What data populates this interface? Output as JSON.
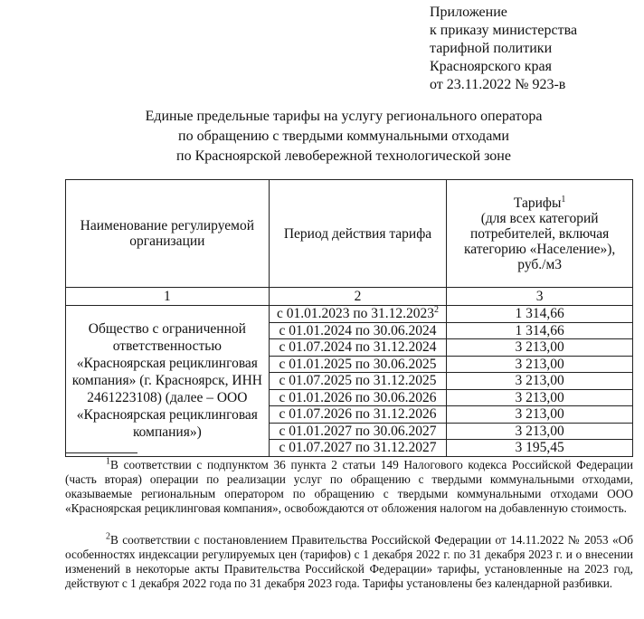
{
  "appendix": {
    "lines": [
      "Приложение",
      "к приказу министерства",
      "тарифной политики",
      "Красноярского края",
      "от 23.11.2022 № 923-в"
    ]
  },
  "title": {
    "lines": [
      "Единые предельные тарифы на услугу регионального оператора",
      "по обращению с твердыми коммунальными отходами",
      "по Красноярской левобережной технологической зоне"
    ]
  },
  "table": {
    "headers": {
      "col1": "Наименование регулируемой организации",
      "col2": "Период действия тарифа",
      "col3_title": "Тарифы",
      "col3_sup": "1",
      "col3_rest": "(для всех категорий потребителей, включая категорию «Население»), руб./м3"
    },
    "col_numbers": [
      "1",
      "2",
      "3"
    ],
    "organization": "Общество с ограниченной ответственностью «Красноярская рециклинговая компания» (г. Красноярск, ИНН 2461223108) (далее – ООО «Красноярская рециклинговая компания»)",
    "rows": [
      {
        "period": "с 01.01.2023 по 31.12.2023",
        "sup": "2",
        "tariff": "1 314,66"
      },
      {
        "period": "с 01.01.2024 по 30.06.2024",
        "sup": "",
        "tariff": "1 314,66"
      },
      {
        "period": "с 01.07.2024 по 31.12.2024",
        "sup": "",
        "tariff": "3 213,00"
      },
      {
        "period": "с 01.01.2025 по 30.06.2025",
        "sup": "",
        "tariff": "3 213,00"
      },
      {
        "period": "с 01.07.2025 по 31.12.2025",
        "sup": "",
        "tariff": "3 213,00"
      },
      {
        "period": "с 01.01.2026 по 30.06.2026",
        "sup": "",
        "tariff": "3 213,00"
      },
      {
        "period": "с 01.07.2026 по 31.12.2026",
        "sup": "",
        "tariff": "3 213,00"
      },
      {
        "period": "с 01.01.2027 по 30.06.2027",
        "sup": "",
        "tariff": "3 213,00"
      },
      {
        "period": "с 01.07.2027 по 31.12.2027",
        "sup": "",
        "tariff": "3 195,45"
      }
    ]
  },
  "footnotes": [
    {
      "mark": "1",
      "text": "В соответствии с подпунктом 36 пункта 2 статьи 149 Налогового кодекса Российской Федерации (часть вторая) операции по реализации услуг по обращению с твердыми коммунальными отходами, оказываемые региональным оператором по обращению с твердыми коммунальными отходами ООО «Красноярская рециклинговая компания», освобождаются от обложения налогом на добавленную стоимость."
    },
    {
      "mark": "2",
      "text": "В соответствии с постановлением Правительства Российской Федерации от 14.11.2022 № 2053 «Об особенностях индексации регулируемых цен (тарифов) с 1 декабря 2022 г. по 31 декабря 2023 г. и о внесении изменений в некоторые акты Правительства Российской Федерации» тарифы, установленные на 2023 год, действуют с 1 декабря 2022 года по 31 декабря 2023 года. Тарифы установлены без календарной разбивки."
    }
  ]
}
